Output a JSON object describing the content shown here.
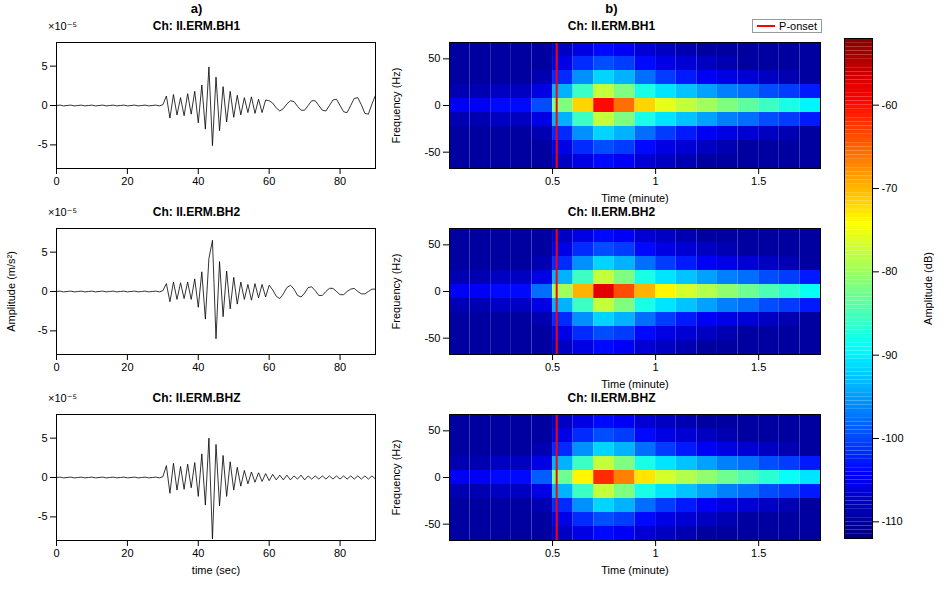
{
  "chart_data": [
    {
      "type": "line",
      "panel_label": "a)",
      "title": "Ch: II.ERM.BH1",
      "y_multiplier": "×10⁻⁵",
      "color": "#000000",
      "x": [
        0,
        1,
        2,
        3,
        4,
        5,
        6,
        7,
        8,
        9,
        10,
        11,
        12,
        13,
        14,
        15,
        16,
        17,
        18,
        19,
        20,
        21,
        22,
        23,
        24,
        25,
        26,
        27,
        28,
        29,
        30,
        31,
        32,
        33,
        34,
        35,
        36,
        37,
        38,
        39,
        40,
        41,
        42,
        43,
        44,
        45,
        46,
        47,
        48,
        49,
        50,
        51,
        52,
        53,
        54,
        55,
        56,
        57,
        58,
        59,
        60,
        61,
        62,
        63,
        64,
        65,
        66,
        67,
        68,
        69,
        70,
        71,
        72,
        73,
        74,
        75,
        76,
        77,
        78,
        79,
        80,
        81,
        82,
        83,
        84,
        85,
        86,
        87,
        88,
        89,
        90
      ],
      "values": [
        0,
        0.05,
        -0.05,
        0,
        0.05,
        -0.05,
        0,
        0.05,
        -0.05,
        0,
        0.05,
        -0.05,
        0,
        0.05,
        -0.05,
        0,
        0.05,
        -0.05,
        0,
        0.05,
        -0.05,
        0,
        0.05,
        -0.05,
        0,
        0.05,
        -0.05,
        0,
        0.05,
        -0.05,
        0.1,
        1.2,
        -1.6,
        1.4,
        -1.2,
        1.0,
        -1.3,
        1.5,
        -1.1,
        1.8,
        -2.2,
        2.6,
        -3.0,
        4.9,
        -5.1,
        3.6,
        -3.2,
        2.4,
        -2.1,
        1.8,
        -1.5,
        1.3,
        -1.2,
        1.0,
        -0.9,
        1.1,
        -1.0,
        0.8,
        -0.9,
        0.7,
        0.6,
        0.3,
        -0.3,
        -0.7,
        -0.4,
        0.2,
        0.6,
        0.5,
        -0.1,
        -0.6,
        -0.6,
        0,
        0.6,
        0.6,
        0,
        -0.6,
        -0.7,
        0,
        0.7,
        0.8,
        0,
        -0.8,
        -0.9,
        0,
        0.9,
        1.0,
        0.1,
        -1.0,
        -1.1,
        0.2,
        1.3
      ],
      "xlim": [
        0,
        90
      ],
      "xticks": [
        0,
        20,
        40,
        60,
        80
      ],
      "ylim": [
        -8,
        8
      ],
      "yticks": [
        -5,
        0,
        5
      ]
    },
    {
      "type": "line",
      "title": "Ch: II.ERM.BH2",
      "y_multiplier": "×10⁻⁵",
      "ylabel": "Amplitude (m/s²)",
      "color": "#000000",
      "x": [
        0,
        1,
        2,
        3,
        4,
        5,
        6,
        7,
        8,
        9,
        10,
        11,
        12,
        13,
        14,
        15,
        16,
        17,
        18,
        19,
        20,
        21,
        22,
        23,
        24,
        25,
        26,
        27,
        28,
        29,
        30,
        31,
        32,
        33,
        34,
        35,
        36,
        37,
        38,
        39,
        40,
        41,
        42,
        43,
        44,
        45,
        46,
        47,
        48,
        49,
        50,
        51,
        52,
        53,
        54,
        55,
        56,
        57,
        58,
        59,
        60,
        61,
        62,
        63,
        64,
        65,
        66,
        67,
        68,
        69,
        70,
        71,
        72,
        73,
        74,
        75,
        76,
        77,
        78,
        79,
        80,
        81,
        82,
        83,
        84,
        85,
        86,
        87,
        88,
        89,
        90
      ],
      "values": [
        0,
        0.05,
        -0.05,
        0,
        0.05,
        -0.05,
        0,
        0.05,
        -0.05,
        0,
        0.05,
        -0.05,
        0,
        0.05,
        -0.05,
        0,
        0.05,
        -0.05,
        0,
        0.05,
        -0.05,
        0,
        0.05,
        -0.05,
        0,
        0.05,
        -0.05,
        0,
        0.05,
        -0.05,
        0.1,
        1.0,
        -1.3,
        1.2,
        -1.0,
        1.1,
        -0.9,
        1.2,
        -1.0,
        1.6,
        -2.0,
        2.5,
        -3.5,
        4.2,
        6.5,
        -6.0,
        3.8,
        -3.2,
        2.6,
        -2.2,
        1.8,
        -1.6,
        1.2,
        -1.0,
        0.9,
        -1.1,
        1.0,
        -0.8,
        0.9,
        -0.7,
        0.8,
        0.2,
        -0.6,
        -0.9,
        -0.3,
        0.5,
        0.8,
        0.3,
        -0.5,
        -0.7,
        -0.2,
        0.5,
        0.6,
        0.1,
        -0.5,
        -0.5,
        0,
        0.4,
        0.4,
        0,
        -0.4,
        -0.4,
        0,
        0.3,
        0.4,
        0,
        -0.3,
        -0.3,
        0,
        0.3,
        0.3
      ],
      "xlim": [
        0,
        90
      ],
      "xticks": [
        0,
        20,
        40,
        60,
        80
      ],
      "ylim": [
        -8,
        8
      ],
      "yticks": [
        -5,
        0,
        5
      ]
    },
    {
      "type": "line",
      "title": "Ch: II.ERM.BHZ",
      "y_multiplier": "×10⁻⁵",
      "xlabel": "time (sec)",
      "color": "#000000",
      "x": [
        0,
        1,
        2,
        3,
        4,
        5,
        6,
        7,
        8,
        9,
        10,
        11,
        12,
        13,
        14,
        15,
        16,
        17,
        18,
        19,
        20,
        21,
        22,
        23,
        24,
        25,
        26,
        27,
        28,
        29,
        30,
        31,
        32,
        33,
        34,
        35,
        36,
        37,
        38,
        39,
        40,
        41,
        42,
        43,
        44,
        45,
        46,
        47,
        48,
        49,
        50,
        51,
        52,
        53,
        54,
        55,
        56,
        57,
        58,
        59,
        60,
        61,
        62,
        63,
        64,
        65,
        66,
        67,
        68,
        69,
        70,
        71,
        72,
        73,
        74,
        75,
        76,
        77,
        78,
        79,
        80,
        81,
        82,
        83,
        84,
        85,
        86,
        87,
        88,
        89,
        90
      ],
      "values": [
        0,
        0.05,
        -0.05,
        0,
        0.05,
        -0.05,
        0,
        0.05,
        -0.05,
        0,
        0.05,
        -0.05,
        0,
        0.05,
        -0.05,
        0,
        0.05,
        -0.05,
        0,
        0.05,
        -0.05,
        0,
        0.05,
        -0.05,
        0,
        0.05,
        -0.05,
        0,
        0.05,
        -0.05,
        0.1,
        1.5,
        -2.0,
        1.8,
        -1.6,
        1.4,
        -1.5,
        1.7,
        -1.3,
        1.9,
        -2.4,
        3.0,
        -3.5,
        5.0,
        -7.8,
        4.2,
        -3.6,
        2.8,
        -2.4,
        2.0,
        -1.6,
        1.3,
        -1.1,
        0.9,
        -0.8,
        0.7,
        -0.6,
        0.6,
        -0.5,
        0.5,
        -0.4,
        0.4,
        -0.3,
        0.3,
        -0.3,
        0.3,
        -0.3,
        0.2,
        -0.2,
        0.3,
        -0.3,
        0.2,
        -0.2,
        0.2,
        -0.2,
        0.2,
        -0.2,
        0.2,
        -0.2,
        0.2,
        -0.2,
        0.2,
        -0.2,
        0.2,
        -0.2,
        0.2,
        -0.2,
        0.2,
        -0.2,
        0.2,
        -0.2
      ],
      "xlim": [
        0,
        90
      ],
      "xticks": [
        0,
        20,
        40,
        60,
        80
      ],
      "ylim": [
        -8,
        8
      ],
      "yticks": [
        -5,
        0,
        5
      ]
    },
    {
      "type": "heatmap",
      "panel_label": "b)",
      "title": "Ch: II.ERM.BH1",
      "xlabel": "Time (minute)",
      "ylabel": "Frequency (Hz)",
      "legend": "top right",
      "onset": {
        "name": "P-onset",
        "x": 0.52,
        "color": "#ff0000"
      },
      "colorbar": {
        "label": "Amplitude (dB)",
        "lim": [
          -112,
          -52
        ],
        "ticks": [
          -110,
          -100,
          -90,
          -80,
          -70,
          -60
        ]
      },
      "xlim": [
        0,
        1.8
      ],
      "xticks": [
        0.5,
        1,
        1.5
      ],
      "ylim": [
        -67.5,
        67.5
      ],
      "yticks": [
        -50,
        0,
        50
      ],
      "x_edges": [
        0,
        0.1,
        0.2,
        0.3,
        0.4,
        0.5,
        0.6,
        0.7,
        0.8,
        0.9,
        1.0,
        1.1,
        1.2,
        1.3,
        1.4,
        1.5,
        1.6,
        1.7,
        1.8
      ],
      "y_edges": [
        -67.5,
        -52.5,
        -37.5,
        -22.5,
        -7.5,
        7.5,
        22.5,
        37.5,
        52.5,
        67.5
      ],
      "cells": [
        [
          -110,
          -110,
          -110,
          -110,
          -110,
          -108,
          -106,
          -104,
          -105,
          -107,
          -108,
          -109,
          -110,
          -110,
          -110,
          -110,
          -110,
          -110
        ],
        [
          -110,
          -110,
          -110,
          -110,
          -110,
          -106,
          -102,
          -100,
          -101,
          -104,
          -106,
          -107,
          -108,
          -109,
          -110,
          -110,
          -110,
          -110
        ],
        [
          -110,
          -110,
          -110,
          -110,
          -109,
          -102,
          -96,
          -92,
          -94,
          -98,
          -101,
          -103,
          -105,
          -106,
          -107,
          -108,
          -109,
          -110
        ],
        [
          -109,
          -109,
          -108,
          -108,
          -106,
          -94,
          -86,
          -78,
          -82,
          -88,
          -91,
          -93,
          -95,
          -97,
          -98,
          -100,
          -101,
          -103
        ],
        [
          -105,
          -105,
          -104,
          -104,
          -100,
          -82,
          -72,
          -60,
          -66,
          -72,
          -76,
          -78,
          -80,
          -82,
          -84,
          -86,
          -88,
          -90
        ],
        [
          -109,
          -109,
          -108,
          -108,
          -106,
          -94,
          -86,
          -78,
          -82,
          -88,
          -91,
          -93,
          -95,
          -97,
          -98,
          -100,
          -101,
          -103
        ],
        [
          -110,
          -110,
          -110,
          -110,
          -109,
          -102,
          -96,
          -92,
          -94,
          -98,
          -101,
          -103,
          -105,
          -106,
          -107,
          -108,
          -109,
          -110
        ],
        [
          -110,
          -110,
          -110,
          -110,
          -110,
          -106,
          -102,
          -100,
          -101,
          -104,
          -106,
          -107,
          -108,
          -109,
          -110,
          -110,
          -110,
          -110
        ],
        [
          -110,
          -110,
          -110,
          -110,
          -110,
          -108,
          -106,
          -104,
          -105,
          -107,
          -108,
          -109,
          -110,
          -110,
          -110,
          -110,
          -110,
          -110
        ]
      ]
    },
    {
      "type": "heatmap",
      "title": "Ch: II.ERM.BH2",
      "xlabel": "Time (minute)",
      "ylabel": "Frequency (Hz)",
      "onset": {
        "name": "P-onset",
        "x": 0.52,
        "color": "#ff0000"
      },
      "xlim": [
        0,
        1.8
      ],
      "xticks": [
        0.5,
        1,
        1.5
      ],
      "ylim": [
        -67.5,
        67.5
      ],
      "yticks": [
        -50,
        0,
        50
      ],
      "x_edges": [
        0,
        0.1,
        0.2,
        0.3,
        0.4,
        0.5,
        0.6,
        0.7,
        0.8,
        0.9,
        1.0,
        1.1,
        1.2,
        1.3,
        1.4,
        1.5,
        1.6,
        1.7,
        1.8
      ],
      "y_edges": [
        -67.5,
        -52.5,
        -37.5,
        -22.5,
        -7.5,
        7.5,
        22.5,
        37.5,
        52.5,
        67.5
      ],
      "cells": [
        [
          -110,
          -110,
          -110,
          -110,
          -110,
          -108,
          -106,
          -104,
          -105,
          -107,
          -108,
          -109,
          -110,
          -110,
          -110,
          -110,
          -110,
          -110
        ],
        [
          -110,
          -110,
          -110,
          -110,
          -110,
          -106,
          -102,
          -100,
          -101,
          -104,
          -106,
          -107,
          -108,
          -109,
          -110,
          -110,
          -110,
          -110
        ],
        [
          -110,
          -110,
          -110,
          -110,
          -109,
          -102,
          -96,
          -92,
          -94,
          -98,
          -101,
          -103,
          -105,
          -106,
          -107,
          -108,
          -109,
          -110
        ],
        [
          -109,
          -109,
          -108,
          -108,
          -106,
          -94,
          -86,
          -78,
          -82,
          -88,
          -91,
          -93,
          -95,
          -97,
          -98,
          -100,
          -101,
          -103
        ],
        [
          -105,
          -105,
          -104,
          -104,
          -98,
          -80,
          -70,
          -58,
          -64,
          -70,
          -74,
          -77,
          -79,
          -81,
          -83,
          -85,
          -87,
          -89
        ],
        [
          -109,
          -109,
          -108,
          -108,
          -106,
          -94,
          -86,
          -78,
          -82,
          -88,
          -91,
          -93,
          -95,
          -97,
          -98,
          -100,
          -101,
          -103
        ],
        [
          -110,
          -110,
          -110,
          -110,
          -109,
          -102,
          -96,
          -92,
          -94,
          -98,
          -101,
          -103,
          -105,
          -106,
          -107,
          -108,
          -109,
          -110
        ],
        [
          -110,
          -110,
          -110,
          -110,
          -110,
          -106,
          -102,
          -100,
          -101,
          -104,
          -106,
          -107,
          -108,
          -109,
          -110,
          -110,
          -110,
          -110
        ],
        [
          -110,
          -110,
          -110,
          -110,
          -110,
          -108,
          -106,
          -104,
          -105,
          -107,
          -108,
          -109,
          -110,
          -110,
          -110,
          -110,
          -110,
          -110
        ]
      ]
    },
    {
      "type": "heatmap",
      "title": "Ch: II.ERM.BHZ",
      "xlabel": "Time (minute)",
      "ylabel": "Frequency (Hz)",
      "onset": {
        "name": "P-onset",
        "x": 0.52,
        "color": "#ff0000"
      },
      "xlim": [
        0,
        1.8
      ],
      "xticks": [
        0.5,
        1,
        1.5
      ],
      "ylim": [
        -67.5,
        67.5
      ],
      "yticks": [
        -50,
        0,
        50
      ],
      "x_edges": [
        0,
        0.1,
        0.2,
        0.3,
        0.4,
        0.5,
        0.6,
        0.7,
        0.8,
        0.9,
        1.0,
        1.1,
        1.2,
        1.3,
        1.4,
        1.5,
        1.6,
        1.7,
        1.8
      ],
      "y_edges": [
        -67.5,
        -52.5,
        -37.5,
        -22.5,
        -7.5,
        7.5,
        22.5,
        37.5,
        52.5,
        67.5
      ],
      "cells": [
        [
          -110,
          -110,
          -110,
          -110,
          -110,
          -108,
          -106,
          -104,
          -105,
          -107,
          -108,
          -109,
          -110,
          -110,
          -110,
          -110,
          -110,
          -110
        ],
        [
          -110,
          -110,
          -110,
          -110,
          -110,
          -106,
          -102,
          -100,
          -101,
          -104,
          -106,
          -107,
          -108,
          -109,
          -110,
          -110,
          -110,
          -110
        ],
        [
          -110,
          -110,
          -110,
          -110,
          -109,
          -102,
          -96,
          -92,
          -94,
          -98,
          -101,
          -103,
          -105,
          -106,
          -107,
          -108,
          -109,
          -110
        ],
        [
          -109,
          -109,
          -108,
          -108,
          -106,
          -94,
          -86,
          -78,
          -82,
          -88,
          -91,
          -93,
          -95,
          -97,
          -98,
          -100,
          -101,
          -103
        ],
        [
          -105,
          -105,
          -104,
          -104,
          -99,
          -83,
          -74,
          -62,
          -67,
          -73,
          -77,
          -79,
          -81,
          -83,
          -85,
          -87,
          -89,
          -91
        ],
        [
          -109,
          -109,
          -108,
          -108,
          -106,
          -94,
          -86,
          -78,
          -82,
          -88,
          -91,
          -93,
          -95,
          -97,
          -98,
          -100,
          -101,
          -103
        ],
        [
          -110,
          -110,
          -110,
          -110,
          -109,
          -102,
          -96,
          -92,
          -94,
          -98,
          -101,
          -103,
          -105,
          -106,
          -107,
          -108,
          -109,
          -110
        ],
        [
          -110,
          -110,
          -110,
          -110,
          -110,
          -106,
          -102,
          -100,
          -101,
          -104,
          -106,
          -107,
          -108,
          -109,
          -110,
          -110,
          -110,
          -110
        ],
        [
          -110,
          -110,
          -110,
          -110,
          -110,
          -108,
          -106,
          -104,
          -105,
          -107,
          -108,
          -109,
          -110,
          -110,
          -110,
          -110,
          -110,
          -110
        ]
      ]
    }
  ]
}
